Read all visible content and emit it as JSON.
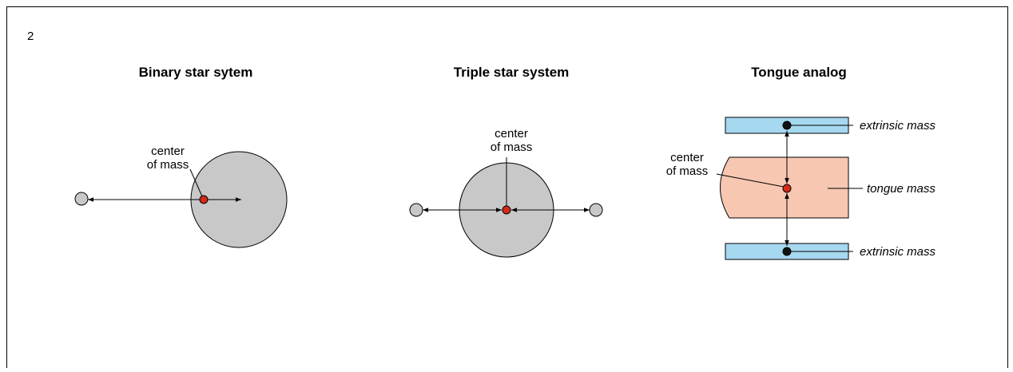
{
  "figure_number": "2",
  "panels": [
    {
      "title": "Binary star sytem",
      "labels": {
        "center_of_mass": [
          "center",
          "of mass"
        ]
      }
    },
    {
      "title": "Triple star system",
      "labels": {
        "center_of_mass": [
          "center",
          "of mass"
        ]
      }
    },
    {
      "title": "Tongue analog",
      "labels": {
        "center_of_mass": [
          "center",
          "of mass"
        ],
        "extrinsic_top": "extrinsic mass",
        "tongue": "tongue mass",
        "extrinsic_bottom": "extrinsic mass"
      }
    }
  ]
}
